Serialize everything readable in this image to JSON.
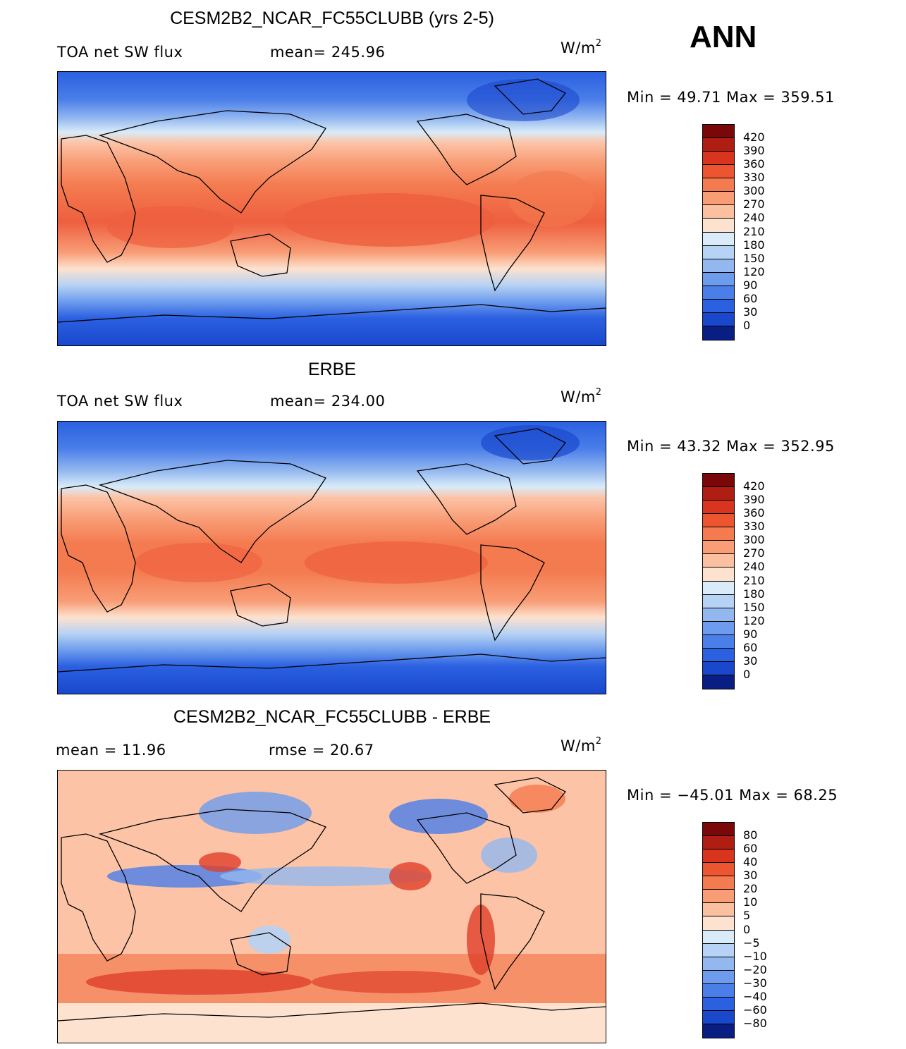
{
  "season": "ANN",
  "colors": {
    "warm": [
      "#fde2cf",
      "#fcc3a6",
      "#f9a27f",
      "#f4815e",
      "#ee5f3f",
      "#e0402a",
      "#c6281b",
      "#9c150f",
      "#7a0808"
    ],
    "cool": [
      "#d9ebf8",
      "#b6d2f4",
      "#93b8f0",
      "#6d9cee",
      "#4a7ee9",
      "#2b60e1",
      "#1a48cd",
      "#0f33ae",
      "#081e83"
    ]
  },
  "panels": [
    {
      "title": "CESM2B2_NCAR_FC55CLUBB (yrs 2-5)",
      "left_label": "TOA net SW flux",
      "stat_label": "mean=  245.96",
      "units_base": "W/m",
      "units_exp": "2",
      "minmax": "Min =   49.71  Max  =  359.51",
      "colorbar_ticks": [
        "420",
        "390",
        "360",
        "330",
        "300",
        "270",
        "240",
        "210",
        "180",
        "150",
        "120",
        "90",
        "60",
        "30",
        "0"
      ],
      "colorbar_colors": [
        "#7a0808",
        "#b01d12",
        "#d8341e",
        "#ec5530",
        "#f47a4f",
        "#f89d76",
        "#fbc0a0",
        "#fde2cf",
        "#d9ebf8",
        "#b6d2f4",
        "#93b8f0",
        "#6d9cee",
        "#4a7ee9",
        "#2b60e1",
        "#1a48cd",
        "#081e83"
      ]
    },
    {
      "title": "ERBE",
      "left_label": "TOA net SW flux",
      "stat_label": "mean=  234.00",
      "units_base": "W/m",
      "units_exp": "2",
      "minmax": "Min =   43.32  Max  =  352.95",
      "colorbar_ticks": [
        "420",
        "390",
        "360",
        "330",
        "300",
        "270",
        "240",
        "210",
        "180",
        "150",
        "120",
        "90",
        "60",
        "30",
        "0"
      ],
      "colorbar_colors": [
        "#7a0808",
        "#b01d12",
        "#d8341e",
        "#ec5530",
        "#f47a4f",
        "#f89d76",
        "#fbc0a0",
        "#fde2cf",
        "#d9ebf8",
        "#b6d2f4",
        "#93b8f0",
        "#6d9cee",
        "#4a7ee9",
        "#2b60e1",
        "#1a48cd",
        "#081e83"
      ]
    },
    {
      "title": "CESM2B2_NCAR_FC55CLUBB - ERBE",
      "left_label": "mean =    11.96",
      "stat_label": "rmse =    20.67",
      "units_base": "W/m",
      "units_exp": "2",
      "minmax": "Min  =  −45.01  Max  =    68.25",
      "colorbar_ticks": [
        "80",
        "60",
        "40",
        "30",
        "20",
        "10",
        "5",
        "0",
        "−5",
        "−10",
        "−20",
        "−30",
        "−40",
        "−60",
        "−80"
      ],
      "colorbar_colors": [
        "#7a0808",
        "#b01d12",
        "#d8341e",
        "#ec5530",
        "#f47a4f",
        "#f89d76",
        "#fbc0a0",
        "#fde2cf",
        "#d9ebf8",
        "#b6d2f4",
        "#93b8f0",
        "#6d9cee",
        "#4a7ee9",
        "#2b60e1",
        "#1a48cd",
        "#081e83"
      ]
    }
  ]
}
